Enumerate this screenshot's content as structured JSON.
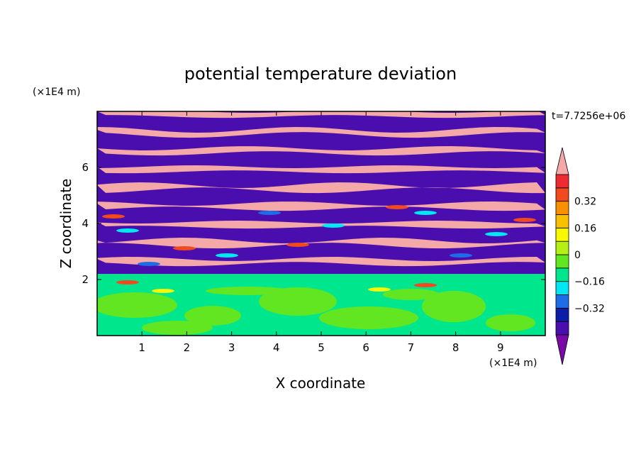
{
  "chart_data": {
    "type": "heatmap",
    "title": "potential temperature deviation",
    "xlabel": "X coordinate",
    "ylabel": "Z coordinate",
    "x_unit": "(×1E4 m)",
    "y_unit": "(×1E4 m)",
    "time_label": "t=7.7256e+06",
    "xlim": [
      0,
      10
    ],
    "ylim": [
      0,
      8
    ],
    "x_ticks": [
      "1",
      "2",
      "3",
      "4",
      "5",
      "6",
      "7",
      "8",
      "9"
    ],
    "y_ticks": [
      "2",
      "4",
      "6"
    ],
    "x_tick_values": [
      1,
      2,
      3,
      4,
      5,
      6,
      7,
      8,
      9
    ],
    "y_tick_values": [
      2,
      4,
      6
    ],
    "colorbar": {
      "levels": [
        -0.48,
        -0.4,
        -0.32,
        -0.24,
        -0.16,
        -0.08,
        0,
        0.08,
        0.16,
        0.24,
        0.32,
        0.4,
        0.48
      ],
      "labels": [
        "0.32",
        "0.16",
        "0",
        "−0.16",
        "−0.32"
      ],
      "label_values": [
        0.32,
        0.16,
        0,
        -0.16,
        -0.32
      ],
      "colors": [
        "#7a0aa8",
        "#4a0eae",
        "#0c1ea8",
        "#1e6ce6",
        "#00e6f2",
        "#00e68c",
        "#62e622",
        "#b4f014",
        "#f8f800",
        "#f8c000",
        "#f89000",
        "#f04a1e",
        "#f02a32",
        "#f4a8a8"
      ],
      "extend": "both"
    },
    "regions": {
      "lower_layer": {
        "z_range": [
          0,
          2.2
        ],
        "values": [
          0.0,
          0.08
        ],
        "colors": [
          "#00e68c",
          "#62e622"
        ]
      },
      "upper_layer": {
        "z_range": [
          2.2,
          8
        ],
        "values": [
          -0.48,
          0.48
        ],
        "colors": [
          "#4a0eae",
          "#f4a8a8"
        ],
        "pattern": "alternating horizontal stripes"
      }
    }
  }
}
